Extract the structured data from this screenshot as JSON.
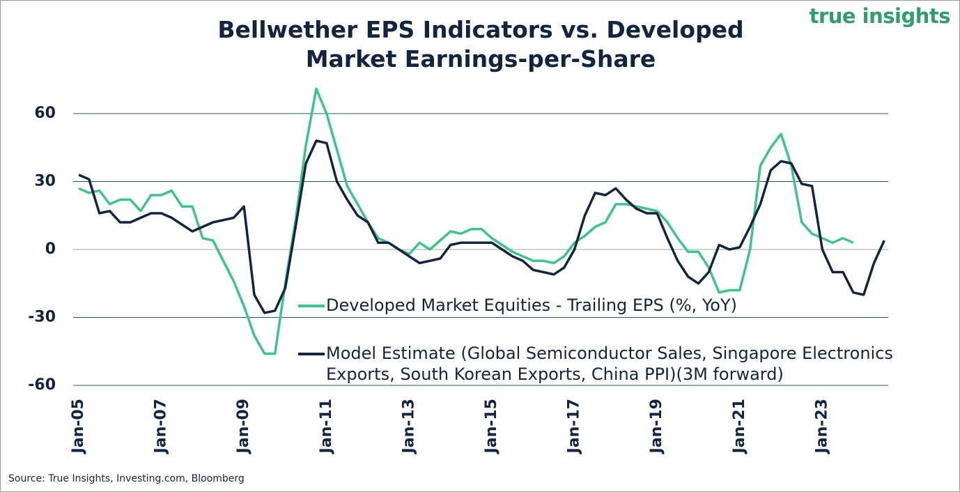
{
  "chart_data": {
    "type": "line",
    "title": "Bellwether EPS Indicators vs. Developed Market Earnings-per-Share",
    "brand": "true insights",
    "source": "Source: True Insights, Investing.com, Bloomberg",
    "x": [
      "Jan-05",
      "Apr-05",
      "Jul-05",
      "Oct-05",
      "Jan-06",
      "Apr-06",
      "Jul-06",
      "Oct-06",
      "Jan-07",
      "Apr-07",
      "Jul-07",
      "Oct-07",
      "Jan-08",
      "Apr-08",
      "Jul-08",
      "Oct-08",
      "Jan-09",
      "Apr-09",
      "Jul-09",
      "Oct-09",
      "Jan-10",
      "Apr-10",
      "Jul-10",
      "Oct-10",
      "Jan-11",
      "Apr-11",
      "Jul-11",
      "Oct-11",
      "Jan-12",
      "Apr-12",
      "Jul-12",
      "Oct-12",
      "Jan-13",
      "Apr-13",
      "Jul-13",
      "Oct-13",
      "Jan-14",
      "Apr-14",
      "Jul-14",
      "Oct-14",
      "Jan-15",
      "Apr-15",
      "Jul-15",
      "Oct-15",
      "Jan-16",
      "Apr-16",
      "Jul-16",
      "Oct-16",
      "Jan-17",
      "Apr-17",
      "Jul-17",
      "Oct-17",
      "Jan-18",
      "Apr-18",
      "Jul-18",
      "Oct-18",
      "Jan-19",
      "Apr-19",
      "Jul-19",
      "Oct-19",
      "Jan-20",
      "Apr-20",
      "Jul-20",
      "Oct-20",
      "Jan-21",
      "Apr-21",
      "Jul-21",
      "Oct-21",
      "Jan-22",
      "Apr-22",
      "Jul-22",
      "Oct-22",
      "Jan-23",
      "Apr-23",
      "Jul-23",
      "Oct-23",
      "Jan-24",
      "Apr-24",
      "Jul-24"
    ],
    "xticks": [
      "Jan-05",
      "Jan-07",
      "Jan-09",
      "Jan-11",
      "Jan-13",
      "Jan-15",
      "Jan-17",
      "Jan-19",
      "Jan-21",
      "Jan-23"
    ],
    "series": [
      {
        "name": "Developed Market Equities - Trailing EPS (%, YoY)",
        "color": "#3cc48a",
        "values": [
          27,
          25,
          26,
          20,
          22,
          22,
          17,
          24,
          24,
          26,
          19,
          19,
          5,
          4,
          -5,
          -14,
          -25,
          -38,
          -46,
          -46,
          -15,
          13,
          46,
          71,
          60,
          44,
          28,
          20,
          12,
          5,
          3,
          0,
          -2,
          3,
          0,
          4,
          8,
          7,
          9,
          9,
          5,
          2,
          -1,
          -3,
          -5,
          -5,
          -6,
          -3,
          3,
          6,
          10,
          12,
          20,
          20,
          19,
          18,
          17,
          12,
          5,
          -1,
          -1,
          -8,
          -19,
          -18,
          -18,
          0,
          37,
          45,
          51,
          37,
          12,
          7,
          5,
          3,
          5,
          3,
          null,
          null,
          null
        ]
      },
      {
        "name": "Model Estimate (Global Semiconductor Sales, Singapore Electronics Exports, South Korean Exports, China PPI)(3M forward)",
        "color": "#13253d",
        "values": [
          33,
          31,
          16,
          17,
          12,
          12,
          14,
          16,
          16,
          14,
          11,
          8,
          10,
          12,
          13,
          14,
          19,
          -20,
          -28,
          -27,
          -17,
          10,
          38,
          48,
          47,
          30,
          22,
          15,
          12,
          3,
          3,
          0,
          -3,
          -6,
          -5,
          -4,
          2,
          3,
          3,
          3,
          3,
          0,
          -3,
          -5,
          -9,
          -10,
          -11,
          -8,
          0,
          15,
          25,
          24,
          27,
          22,
          18,
          16,
          16,
          5,
          -5,
          -12,
          -15,
          -10,
          2,
          0,
          1,
          10,
          20,
          35,
          39,
          38,
          29,
          28,
          0,
          -10,
          -10,
          -19,
          -20,
          -6,
          4
        ]
      }
    ],
    "ylim": [
      -60,
      70
    ],
    "yticks": [
      -60,
      -30,
      0,
      30,
      60
    ],
    "grid": true
  }
}
